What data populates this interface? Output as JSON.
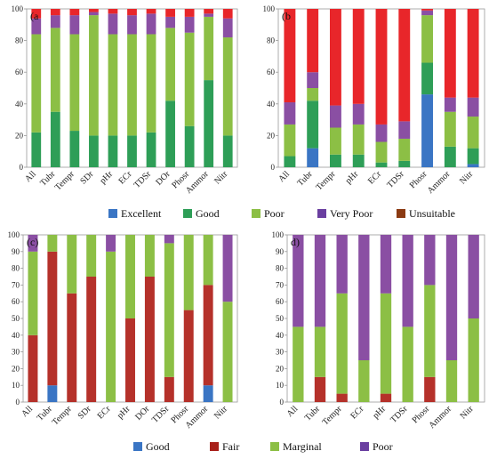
{
  "chart_data": [
    {
      "id": "a",
      "panel_label": "(a",
      "type": "bar",
      "stacked": true,
      "ylim": [
        0,
        100
      ],
      "yticks": [
        0,
        20,
        40,
        60,
        80,
        100
      ],
      "categories": [
        "All",
        "Tubr",
        "Tempr",
        "SDr",
        "pHr",
        "ECr",
        "TDSr",
        "DOr",
        "Phosr",
        "Ammor",
        "Nitr"
      ],
      "series": [
        {
          "name": "Excellent",
          "color": "#3a75c4",
          "values": [
            0,
            0,
            0,
            0,
            0,
            0,
            0,
            0,
            0,
            0,
            0
          ]
        },
        {
          "name": "Good",
          "color": "#2e9e57",
          "values": [
            22,
            35,
            23,
            20,
            20,
            20,
            22,
            42,
            26,
            55,
            20
          ]
        },
        {
          "name": "Poor",
          "color": "#8cbf45",
          "values": [
            62,
            53,
            61,
            76,
            64,
            64,
            62,
            46,
            59,
            40,
            62
          ]
        },
        {
          "name": "Very Poor",
          "color": "#8a4fa3",
          "values": [
            10,
            8,
            12,
            2,
            13,
            12,
            13,
            7,
            10,
            2,
            12
          ]
        },
        {
          "name": "Unsuitable",
          "color": "#e8262a",
          "values": [
            6,
            4,
            4,
            2,
            3,
            4,
            3,
            5,
            5,
            3,
            6
          ]
        }
      ]
    },
    {
      "id": "b",
      "panel_label": "(b",
      "type": "bar",
      "stacked": true,
      "ylim": [
        0,
        100
      ],
      "yticks": [
        0,
        20,
        40,
        60,
        80,
        100
      ],
      "categories": [
        "All",
        "Tubr",
        "Tempr",
        "pHr",
        "ECr",
        "TDSr",
        "Phosr",
        "Ammor",
        "Nitr"
      ],
      "series": [
        {
          "name": "Excellent",
          "color": "#3a75c4",
          "values": [
            0,
            12,
            0,
            0,
            0,
            0,
            46,
            0,
            2
          ]
        },
        {
          "name": "Good",
          "color": "#2e9e57",
          "values": [
            7,
            30,
            8,
            8,
            3,
            4,
            20,
            13,
            10
          ]
        },
        {
          "name": "Poor",
          "color": "#8cbf45",
          "values": [
            20,
            8,
            17,
            19,
            13,
            14,
            30,
            22,
            20
          ]
        },
        {
          "name": "Very Poor",
          "color": "#8a4fa3",
          "values": [
            14,
            10,
            14,
            13,
            11,
            11,
            3,
            9,
            12
          ]
        },
        {
          "name": "Unsuitable",
          "color": "#e8262a",
          "values": [
            59,
            40,
            61,
            60,
            73,
            71,
            1,
            56,
            56
          ]
        }
      ]
    },
    {
      "id": "c",
      "panel_label": "(c)",
      "type": "bar",
      "stacked": true,
      "ylim": [
        0,
        100
      ],
      "yticks": [
        0,
        10,
        20,
        30,
        40,
        50,
        60,
        70,
        80,
        90,
        100
      ],
      "categories": [
        "All",
        "Tubr",
        "Tempr",
        "SDr",
        "ECr",
        "pHr",
        "DOr",
        "TDSr",
        "Phosr",
        "Ammor",
        "Nitr"
      ],
      "series": [
        {
          "name": "Good",
          "color": "#3a75c4",
          "values": [
            0,
            10,
            0,
            0,
            0,
            0,
            0,
            0,
            0,
            10,
            0
          ]
        },
        {
          "name": "Fair",
          "color": "#b5312a",
          "values": [
            40,
            80,
            65,
            75,
            0,
            50,
            75,
            15,
            55,
            60,
            0
          ]
        },
        {
          "name": "Marginal",
          "color": "#8cbf45",
          "values": [
            50,
            10,
            35,
            25,
            90,
            50,
            25,
            80,
            45,
            30,
            60
          ]
        },
        {
          "name": "Poor",
          "color": "#8a4fa3",
          "values": [
            10,
            0,
            0,
            0,
            10,
            0,
            0,
            5,
            0,
            0,
            40
          ]
        }
      ]
    },
    {
      "id": "d",
      "panel_label": "d)",
      "type": "bar",
      "stacked": true,
      "ylim": [
        0,
        100
      ],
      "yticks": [
        0,
        10,
        20,
        30,
        40,
        50,
        60,
        70,
        80,
        90,
        100
      ],
      "categories": [
        "All",
        "Tubr",
        "Tempr",
        "ECr",
        "pHr",
        "TDSr",
        "Phosr",
        "Ammor",
        "Nitr"
      ],
      "series": [
        {
          "name": "Good",
          "color": "#3a75c4",
          "values": [
            0,
            0,
            0,
            0,
            0,
            0,
            0,
            0,
            0
          ]
        },
        {
          "name": "Fair",
          "color": "#b5312a",
          "values": [
            0,
            15,
            5,
            0,
            5,
            0,
            15,
            0,
            0
          ]
        },
        {
          "name": "Marginal",
          "color": "#8cbf45",
          "values": [
            45,
            30,
            60,
            25,
            60,
            45,
            55,
            25,
            50
          ]
        },
        {
          "name": "Poor",
          "color": "#8a4fa3",
          "values": [
            55,
            55,
            35,
            75,
            35,
            55,
            30,
            75,
            50
          ]
        }
      ]
    }
  ],
  "legends": {
    "top": [
      {
        "label": "Excellent",
        "color": "#3a75c4"
      },
      {
        "label": "Good",
        "color": "#2e9e57"
      },
      {
        "label": "Poor",
        "color": "#8cbf45"
      },
      {
        "label": "Very Poor",
        "color": "#6a3fa0"
      },
      {
        "label": "Unsuitable",
        "color": "#8b3a12"
      }
    ],
    "bottom": [
      {
        "label": "Good",
        "color": "#3a75c4"
      },
      {
        "label": "Fair",
        "color": "#a8201a"
      },
      {
        "label": "Marginal",
        "color": "#8cbf45"
      },
      {
        "label": "Poor",
        "color": "#6a3fa0"
      }
    ]
  }
}
